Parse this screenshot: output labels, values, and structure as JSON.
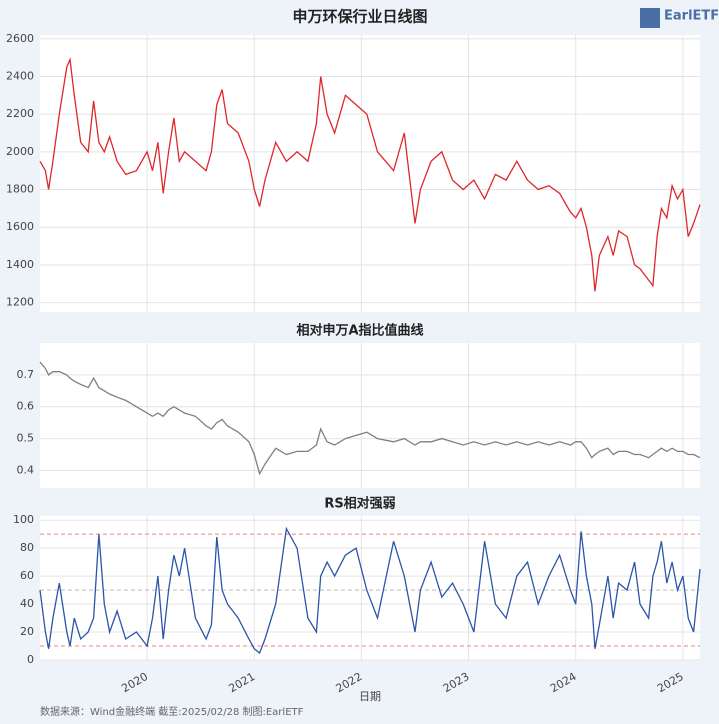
{
  "title": "申万环保行业日线图",
  "source": "数据来源：Wind金融终端 截至:2025/02/28 制图:EarlETF",
  "logo": "EarlETF",
  "chart_data": [
    {
      "type": "line",
      "color": "#e0262b",
      "grid": true,
      "x": [
        2019.0,
        2019.05,
        2019.08,
        2019.12,
        2019.18,
        2019.25,
        2019.28,
        2019.32,
        2019.38,
        2019.45,
        2019.5,
        2019.55,
        2019.6,
        2019.65,
        2019.72,
        2019.8,
        2019.9,
        2020.0,
        2020.05,
        2020.1,
        2020.15,
        2020.2,
        2020.25,
        2020.3,
        2020.35,
        2020.45,
        2020.55,
        2020.6,
        2020.65,
        2020.7,
        2020.75,
        2020.85,
        2020.95,
        2021.0,
        2021.05,
        2021.1,
        2021.2,
        2021.3,
        2021.4,
        2021.5,
        2021.58,
        2021.62,
        2021.68,
        2021.75,
        2021.85,
        2021.95,
        2022.05,
        2022.15,
        2022.3,
        2022.4,
        2022.5,
        2022.55,
        2022.65,
        2022.75,
        2022.85,
        2022.95,
        2023.05,
        2023.15,
        2023.25,
        2023.35,
        2023.45,
        2023.55,
        2023.65,
        2023.75,
        2023.85,
        2023.95,
        2024.0,
        2024.05,
        2024.1,
        2024.15,
        2024.18,
        2024.22,
        2024.3,
        2024.35,
        2024.4,
        2024.48,
        2024.55,
        2024.6,
        2024.68,
        2024.72,
        2024.76,
        2024.8,
        2024.85,
        2024.9,
        2024.95,
        2025.0,
        2025.05,
        2025.1,
        2025.16
      ],
      "values": [
        1950,
        1900,
        1800,
        1950,
        2200,
        2450,
        2490,
        2300,
        2050,
        2000,
        2270,
        2050,
        2000,
        2080,
        1950,
        1880,
        1900,
        2000,
        1900,
        2050,
        1780,
        2000,
        2180,
        1950,
        2000,
        1950,
        1900,
        2000,
        2250,
        2330,
        2150,
        2100,
        1950,
        1800,
        1710,
        1850,
        2050,
        1950,
        2000,
        1950,
        2150,
        2400,
        2200,
        2100,
        2300,
        2250,
        2200,
        2000,
        1900,
        2100,
        1620,
        1800,
        1950,
        2000,
        1850,
        1800,
        1850,
        1750,
        1880,
        1850,
        1950,
        1850,
        1800,
        1820,
        1780,
        1680,
        1650,
        1700,
        1600,
        1450,
        1260,
        1450,
        1550,
        1450,
        1580,
        1550,
        1400,
        1380,
        1320,
        1290,
        1550,
        1700,
        1650,
        1820,
        1750,
        1800,
        1550,
        1620,
        1720
      ],
      "xlim": [
        2019.0,
        2025.16
      ],
      "xticks": [
        2020,
        2021,
        2022,
        2023,
        2024,
        2025
      ],
      "ylim": [
        1150,
        2620
      ],
      "yticks": [
        1200,
        1400,
        1600,
        1800,
        2000,
        2200,
        2400,
        2600
      ]
    },
    {
      "type": "line",
      "title": "相对申万A指比值曲线",
      "color": "#7f7f7f",
      "grid": true,
      "x": [
        2019.0,
        2019.05,
        2019.08,
        2019.12,
        2019.18,
        2019.25,
        2019.28,
        2019.32,
        2019.38,
        2019.45,
        2019.5,
        2019.55,
        2019.6,
        2019.65,
        2019.72,
        2019.8,
        2019.9,
        2020.0,
        2020.05,
        2020.1,
        2020.15,
        2020.2,
        2020.25,
        2020.3,
        2020.35,
        2020.45,
        2020.55,
        2020.6,
        2020.65,
        2020.7,
        2020.75,
        2020.85,
        2020.95,
        2021.0,
        2021.05,
        2021.1,
        2021.2,
        2021.3,
        2021.4,
        2021.5,
        2021.58,
        2021.62,
        2021.68,
        2021.75,
        2021.85,
        2021.95,
        2022.05,
        2022.15,
        2022.3,
        2022.4,
        2022.5,
        2022.55,
        2022.65,
        2022.75,
        2022.85,
        2022.95,
        2023.05,
        2023.15,
        2023.25,
        2023.35,
        2023.45,
        2023.55,
        2023.65,
        2023.75,
        2023.85,
        2023.95,
        2024.0,
        2024.05,
        2024.1,
        2024.15,
        2024.18,
        2024.22,
        2024.3,
        2024.35,
        2024.4,
        2024.48,
        2024.55,
        2024.6,
        2024.68,
        2024.72,
        2024.76,
        2024.8,
        2024.85,
        2024.9,
        2024.95,
        2025.0,
        2025.05,
        2025.1,
        2025.16
      ],
      "values": [
        0.74,
        0.72,
        0.7,
        0.71,
        0.71,
        0.7,
        0.69,
        0.68,
        0.67,
        0.66,
        0.69,
        0.66,
        0.65,
        0.64,
        0.63,
        0.62,
        0.6,
        0.58,
        0.57,
        0.58,
        0.57,
        0.59,
        0.6,
        0.59,
        0.58,
        0.57,
        0.54,
        0.53,
        0.55,
        0.56,
        0.54,
        0.52,
        0.49,
        0.45,
        0.39,
        0.42,
        0.47,
        0.45,
        0.46,
        0.46,
        0.48,
        0.53,
        0.49,
        0.48,
        0.5,
        0.51,
        0.52,
        0.5,
        0.49,
        0.5,
        0.48,
        0.49,
        0.49,
        0.5,
        0.49,
        0.48,
        0.49,
        0.48,
        0.49,
        0.48,
        0.49,
        0.48,
        0.49,
        0.48,
        0.49,
        0.48,
        0.49,
        0.49,
        0.47,
        0.44,
        0.45,
        0.46,
        0.47,
        0.45,
        0.46,
        0.46,
        0.45,
        0.45,
        0.44,
        0.45,
        0.46,
        0.47,
        0.46,
        0.47,
        0.46,
        0.46,
        0.45,
        0.45,
        0.44
      ],
      "xlim": [
        2019.0,
        2025.16
      ],
      "xticks": [
        2020,
        2021,
        2022,
        2023,
        2024,
        2025
      ],
      "ylim": [
        0.345,
        0.8
      ],
      "yticks": [
        0.4,
        0.5,
        0.6,
        0.7
      ]
    },
    {
      "type": "line",
      "title": "RS相对强弱",
      "xlabel": "日期",
      "color": "#2b55a8",
      "grid": true,
      "x": [
        2019.0,
        2019.05,
        2019.08,
        2019.12,
        2019.18,
        2019.25,
        2019.28,
        2019.32,
        2019.38,
        2019.45,
        2019.5,
        2019.55,
        2019.6,
        2019.65,
        2019.72,
        2019.8,
        2019.9,
        2020.0,
        2020.05,
        2020.1,
        2020.15,
        2020.2,
        2020.25,
        2020.3,
        2020.35,
        2020.45,
        2020.55,
        2020.6,
        2020.65,
        2020.7,
        2020.75,
        2020.85,
        2020.95,
        2021.0,
        2021.05,
        2021.1,
        2021.2,
        2021.3,
        2021.4,
        2021.5,
        2021.58,
        2021.62,
        2021.68,
        2021.75,
        2021.85,
        2021.95,
        2022.05,
        2022.15,
        2022.3,
        2022.4,
        2022.5,
        2022.55,
        2022.65,
        2022.75,
        2022.85,
        2022.95,
        2023.05,
        2023.15,
        2023.25,
        2023.35,
        2023.45,
        2023.55,
        2023.65,
        2023.75,
        2023.85,
        2023.95,
        2024.0,
        2024.05,
        2024.1,
        2024.15,
        2024.18,
        2024.22,
        2024.3,
        2024.35,
        2024.4,
        2024.48,
        2024.55,
        2024.6,
        2024.68,
        2024.72,
        2024.76,
        2024.8,
        2024.85,
        2024.9,
        2024.95,
        2025.0,
        2025.05,
        2025.1,
        2025.16
      ],
      "values": [
        50,
        20,
        8,
        30,
        55,
        20,
        10,
        30,
        15,
        20,
        30,
        90,
        40,
        20,
        35,
        15,
        20,
        10,
        30,
        60,
        15,
        50,
        75,
        60,
        80,
        30,
        15,
        25,
        88,
        50,
        40,
        30,
        15,
        8,
        5,
        15,
        40,
        94,
        80,
        30,
        20,
        60,
        70,
        60,
        75,
        80,
        50,
        30,
        85,
        60,
        20,
        50,
        70,
        45,
        55,
        40,
        20,
        85,
        40,
        30,
        60,
        70,
        40,
        60,
        75,
        50,
        40,
        92,
        60,
        40,
        8,
        25,
        60,
        30,
        55,
        50,
        70,
        40,
        30,
        60,
        70,
        85,
        55,
        70,
        50,
        60,
        30,
        20,
        65
      ],
      "xlim": [
        2019.0,
        2025.16
      ],
      "xticks": [
        2020,
        2021,
        2022,
        2023,
        2024,
        2025
      ],
      "ylim": [
        0,
        103
      ],
      "yticks": [
        0,
        20,
        40,
        60,
        80,
        100
      ],
      "reference_lines": [
        {
          "value": 90,
          "color": "#f08080"
        },
        {
          "value": 50,
          "color": "#bbbbbb"
        },
        {
          "value": 10,
          "color": "#f08080"
        }
      ]
    }
  ]
}
